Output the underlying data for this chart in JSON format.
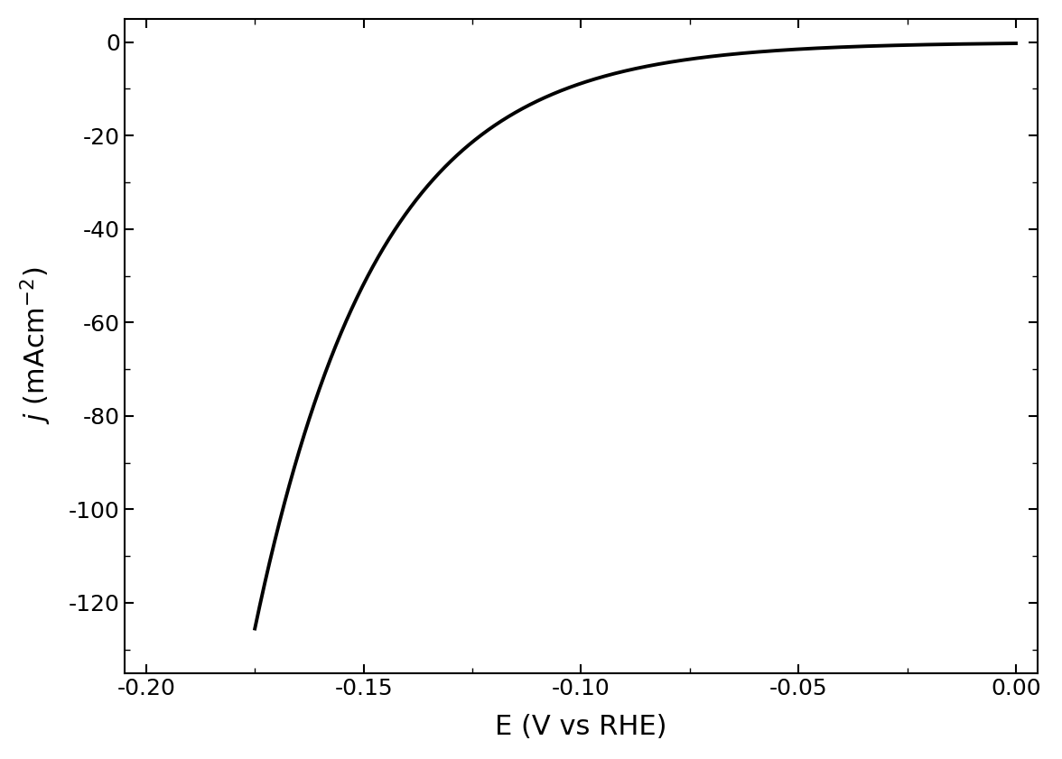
{
  "xlabel": "E (V vs RHE)",
  "xlim": [
    -0.205,
    0.005
  ],
  "ylim": [
    -135,
    5
  ],
  "xticks": [
    -0.2,
    -0.15,
    -0.1,
    -0.05,
    0.0
  ],
  "yticks": [
    0,
    -20,
    -40,
    -60,
    -80,
    -100,
    -120
  ],
  "line_color": "#000000",
  "line_width": 2.8,
  "background_color": "#ffffff",
  "curve_E_onset": -0.175,
  "curve_A": 280.0,
  "curve_n": 0.38,
  "curve_E_start": -0.175,
  "curve_E_end": 0.0,
  "tick_labelsize": 18,
  "xlabel_fontsize": 22,
  "ylabel_fontsize": 22
}
